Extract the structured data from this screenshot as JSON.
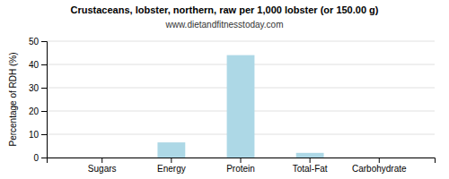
{
  "chart_data": {
    "type": "bar",
    "title": "Crustaceans, lobster, northern, raw per 1,000 lobster (or 150.00 g)",
    "subtitle": "www.dietandfitnesstoday.com",
    "categories": [
      "Sugars",
      "Energy",
      "Protein",
      "Total-Fat",
      "Carbohydrate"
    ],
    "values": [
      0,
      6.5,
      44,
      2,
      0
    ],
    "color": "#add8e6",
    "ylabel": "Percentage of RDH (%)",
    "ylim": [
      0,
      50
    ],
    "yticks": [
      0,
      10,
      20,
      30,
      40,
      50
    ],
    "grid": true
  }
}
